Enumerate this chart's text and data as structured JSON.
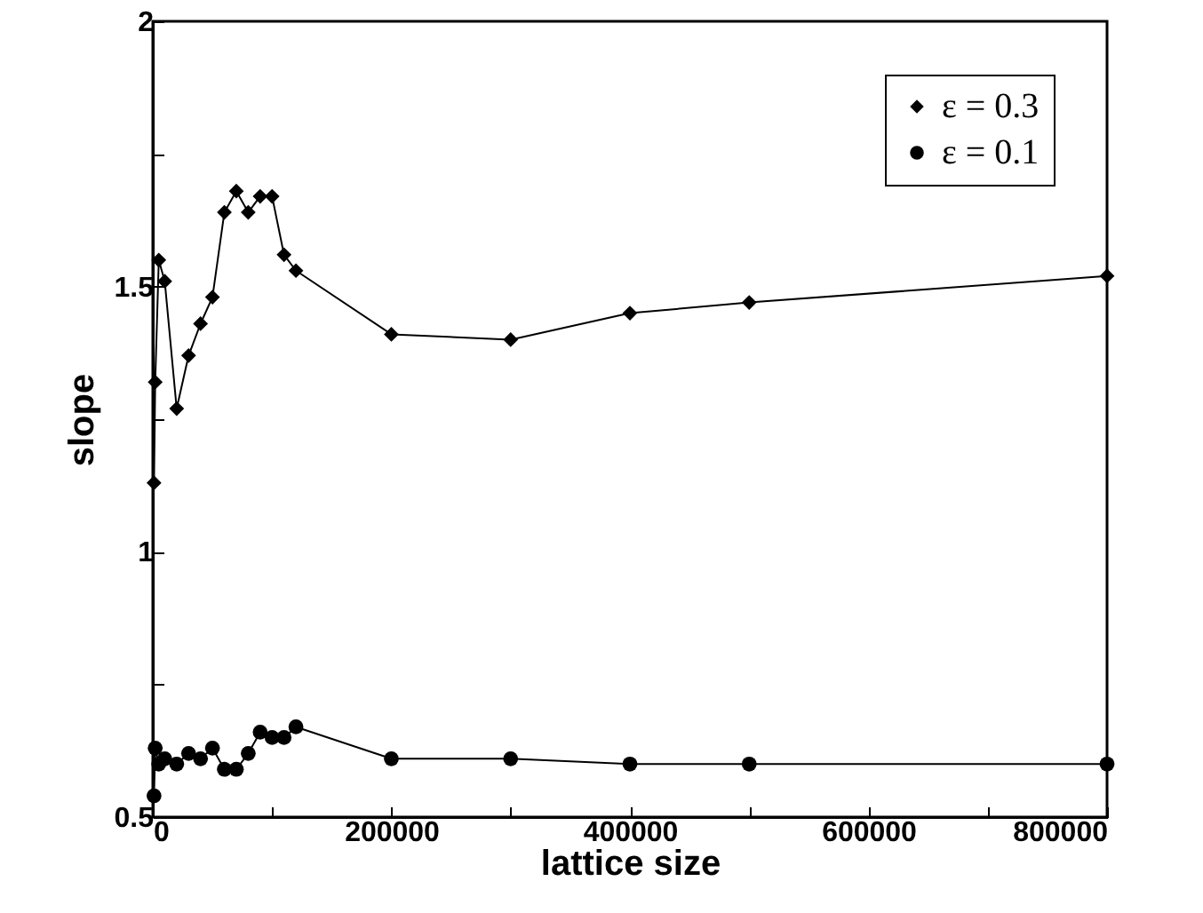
{
  "chart_data": {
    "type": "line",
    "xlabel": "lattice size",
    "ylabel": "slope",
    "x": [
      1000,
      2000,
      5000,
      10000,
      20000,
      30000,
      40000,
      50000,
      60000,
      70000,
      80000,
      90000,
      100000,
      110000,
      120000,
      200000,
      300000,
      400000,
      500000,
      800000
    ],
    "series": [
      {
        "name": "ε = 0.3",
        "color": "#000000",
        "marker": "diamond",
        "values": [
          1.13,
          1.32,
          1.55,
          1.51,
          1.27,
          1.37,
          1.43,
          1.48,
          1.64,
          1.68,
          1.64,
          1.67,
          1.67,
          1.56,
          1.53,
          1.41,
          1.4,
          1.45,
          1.47,
          1.52
        ]
      },
      {
        "name": "ε = 0.1",
        "color": "#000000",
        "marker": "circle",
        "values": [
          0.54,
          0.63,
          0.6,
          0.61,
          0.6,
          0.62,
          0.61,
          0.63,
          0.59,
          0.59,
          0.62,
          0.66,
          0.65,
          0.65,
          0.67,
          0.61,
          0.61,
          0.6,
          0.6,
          0.6
        ]
      }
    ],
    "xlim": [
      0,
      800000
    ],
    "xticks": [
      0,
      {
        "value": 100000,
        "label": null
      },
      200000,
      {
        "value": 300000,
        "label": null
      },
      400000,
      {
        "value": 500000,
        "label": null
      },
      600000,
      {
        "value": 700000,
        "label": null
      },
      800000
    ],
    "ylim": [
      0.5,
      2
    ],
    "yticks": [
      0.5,
      {
        "value": 0.75,
        "label": null
      },
      1,
      {
        "value": 1.25,
        "label": null
      },
      1.5,
      {
        "value": 1.75,
        "label": null
      },
      2
    ],
    "grid": false,
    "legend": "top right",
    "line_style": "solid"
  }
}
